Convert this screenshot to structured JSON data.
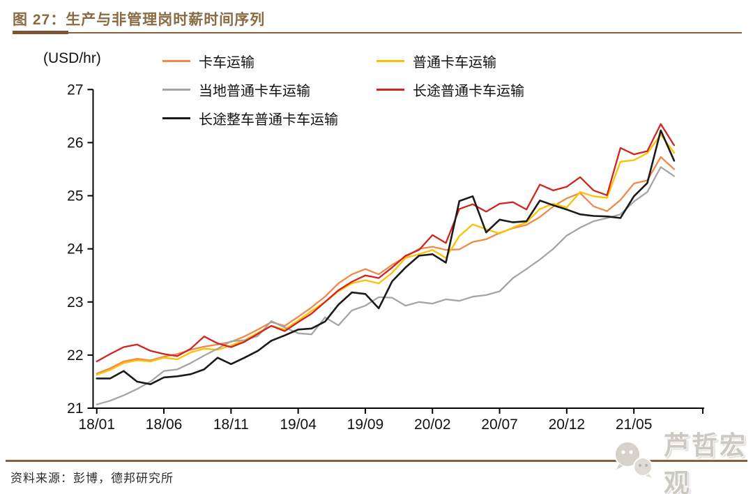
{
  "header": {
    "title": "图 27：生产与非管理岗时薪时间序列"
  },
  "footer": {
    "source": "资料来源：彭博，德邦研究所"
  },
  "watermark": {
    "text": "芦哲宏观",
    "icon": "wechat-chat-bubbles-icon"
  },
  "chart_data": {
    "type": "line",
    "title": "生产与非管理岗时薪时间序列",
    "unit_label": "(USD/hr)",
    "ylim": [
      21,
      27
    ],
    "yticks": [
      21,
      22,
      23,
      24,
      25,
      26,
      27
    ],
    "x_tick_labels": [
      "18/01",
      "18/06",
      "18/11",
      "19/04",
      "19/09",
      "20/02",
      "20/07",
      "20/12",
      "21/05"
    ],
    "x_tick_every": 5,
    "grid": false,
    "legend_position": "top",
    "months": [
      "18/01",
      "18/02",
      "18/03",
      "18/04",
      "18/05",
      "18/06",
      "18/07",
      "18/08",
      "18/09",
      "18/10",
      "18/11",
      "18/12",
      "19/01",
      "19/02",
      "19/03",
      "19/04",
      "19/05",
      "19/06",
      "19/07",
      "19/08",
      "19/09",
      "19/10",
      "19/11",
      "19/12",
      "20/01",
      "20/02",
      "20/03",
      "20/04",
      "20/05",
      "20/06",
      "20/07",
      "20/08",
      "20/09",
      "20/10",
      "20/11",
      "20/12",
      "21/01",
      "21/02",
      "21/03",
      "21/04",
      "21/05",
      "21/06",
      "21/07",
      "21/08"
    ],
    "series": [
      {
        "name": "卡车运输",
        "color": "#ef8a48",
        "values": [
          21.65,
          21.75,
          21.88,
          21.93,
          21.9,
          21.97,
          22.02,
          22.1,
          22.16,
          22.2,
          22.25,
          22.35,
          22.48,
          22.62,
          22.55,
          22.72,
          22.9,
          23.1,
          23.35,
          23.52,
          23.62,
          23.52,
          23.7,
          23.85,
          24.0,
          24.04,
          23.98,
          23.99,
          24.13,
          24.18,
          24.3,
          24.39,
          24.45,
          24.6,
          24.8,
          24.95,
          25.05,
          24.8,
          24.71,
          24.92,
          25.23,
          25.29,
          25.73,
          25.5
        ]
      },
      {
        "name": "普通卡车运输",
        "color": "#ffc000",
        "values": [
          21.63,
          21.72,
          21.85,
          21.9,
          21.88,
          21.95,
          21.92,
          22.05,
          22.12,
          22.1,
          22.18,
          22.28,
          22.42,
          22.55,
          22.48,
          22.65,
          22.83,
          23.0,
          23.2,
          23.35,
          23.41,
          23.35,
          23.55,
          23.83,
          23.9,
          23.98,
          23.83,
          24.24,
          24.46,
          24.37,
          24.29,
          24.4,
          24.5,
          24.75,
          24.85,
          24.78,
          25.07,
          24.99,
          24.96,
          25.64,
          25.67,
          25.8,
          26.15,
          25.81
        ]
      },
      {
        "name": "当地普通卡车运输",
        "color": "#a5a5a5",
        "values": [
          21.07,
          21.14,
          21.24,
          21.36,
          21.5,
          21.7,
          21.73,
          21.85,
          21.99,
          22.12,
          22.26,
          22.28,
          22.36,
          22.64,
          22.52,
          22.41,
          22.39,
          22.71,
          22.56,
          22.84,
          22.93,
          23.09,
          23.08,
          22.93,
          23.0,
          22.97,
          23.05,
          23.02,
          23.1,
          23.13,
          23.2,
          23.45,
          23.62,
          23.8,
          24.0,
          24.25,
          24.4,
          24.52,
          24.58,
          24.65,
          24.89,
          25.07,
          25.54,
          25.37
        ]
      },
      {
        "name": "长途普通卡车运输",
        "color": "#d2231e",
        "values": [
          21.88,
          22.02,
          22.15,
          22.2,
          22.08,
          22.02,
          21.98,
          22.12,
          22.35,
          22.22,
          22.15,
          22.25,
          22.4,
          22.55,
          22.45,
          22.62,
          22.78,
          23.0,
          23.22,
          23.38,
          23.5,
          23.45,
          23.65,
          23.87,
          23.98,
          24.26,
          24.11,
          24.75,
          24.84,
          24.7,
          24.85,
          24.88,
          24.74,
          25.21,
          25.1,
          25.17,
          25.35,
          25.1,
          25.01,
          25.9,
          25.78,
          25.84,
          26.35,
          25.95
        ]
      },
      {
        "name": "长途整车普通卡车运输",
        "color": "#1a1a1a",
        "values": [
          21.56,
          21.56,
          21.7,
          21.5,
          21.45,
          21.58,
          21.6,
          21.64,
          21.73,
          21.95,
          21.83,
          21.95,
          22.08,
          22.27,
          22.37,
          22.48,
          22.5,
          22.63,
          22.95,
          23.18,
          23.15,
          22.88,
          23.39,
          23.65,
          23.87,
          23.9,
          23.74,
          24.9,
          24.99,
          24.31,
          24.55,
          24.5,
          24.52,
          24.91,
          24.82,
          24.74,
          24.65,
          24.62,
          24.61,
          24.58,
          24.99,
          25.24,
          26.23,
          25.66
        ]
      }
    ]
  },
  "colors": {
    "accent_brown": "#8b5e3b",
    "title_text": "#8a6a42",
    "axis": "#000000",
    "watermark_gray": "#cdc8c2"
  }
}
